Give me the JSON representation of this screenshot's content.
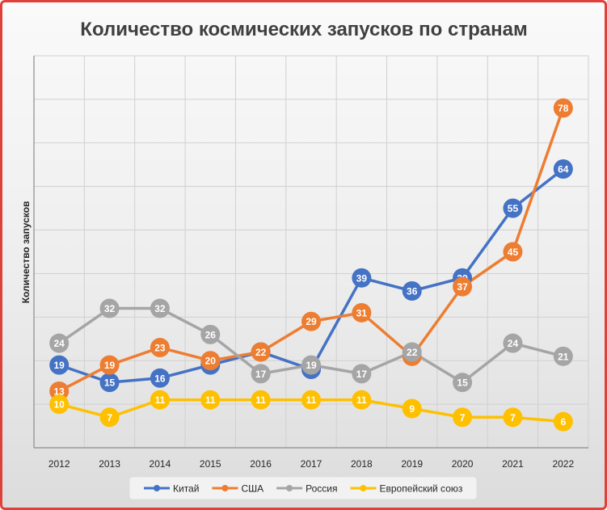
{
  "chart_data": {
    "type": "line",
    "title": "Количество космических запусков по странам",
    "xlabel": "",
    "ylabel": "Количество запусков",
    "categories": [
      "2012",
      "2013",
      "2014",
      "2015",
      "2016",
      "2017",
      "2018",
      "2019",
      "2020",
      "2021",
      "2022"
    ],
    "ylim": [
      0,
      90
    ],
    "grid": true,
    "legend": "bottom",
    "series": [
      {
        "name": "Китай",
        "color": "#4472c4",
        "values": [
          19,
          15,
          16,
          19,
          22,
          18,
          39,
          36,
          39,
          55,
          64
        ]
      },
      {
        "name": "США",
        "color": "#ed7d31",
        "values": [
          13,
          19,
          23,
          20,
          22,
          29,
          31,
          21,
          37,
          45,
          78
        ]
      },
      {
        "name": "Россия",
        "color": "#a5a5a5",
        "values": [
          24,
          32,
          32,
          26,
          17,
          19,
          17,
          22,
          15,
          24,
          21
        ]
      },
      {
        "name": "Европейский союз",
        "color": "#ffc000",
        "values": [
          10,
          7,
          11,
          11,
          11,
          11,
          11,
          9,
          7,
          7,
          6
        ]
      }
    ]
  }
}
